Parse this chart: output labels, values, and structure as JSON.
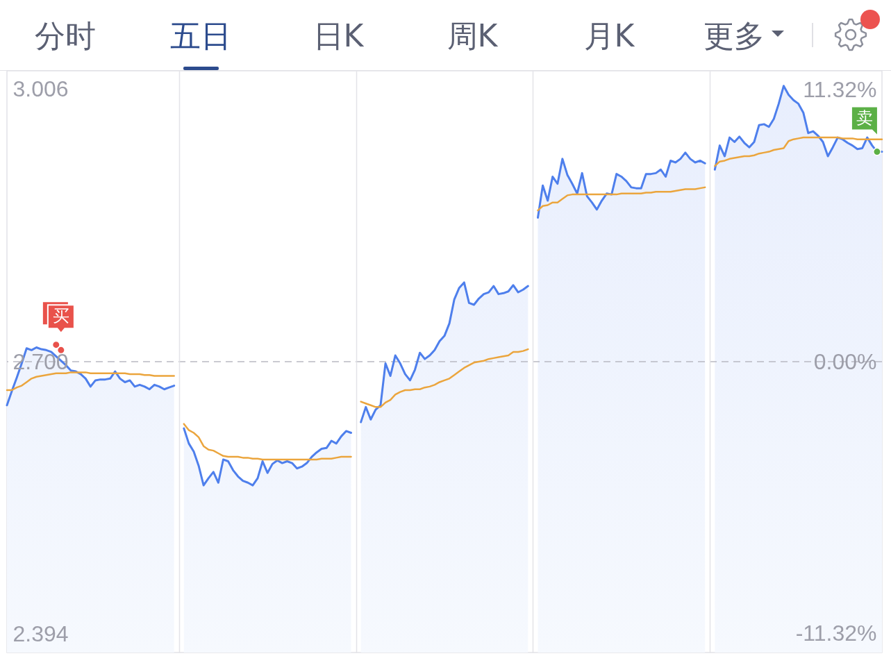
{
  "chart_data": {
    "type": "line",
    "annotations": [
      "分时",
      "五日",
      "日K",
      "周K",
      "月K",
      "更多"
    ],
    "categories": [
      null,
      null,
      null,
      null,
      null,
      null,
      null,
      null,
      null,
      null,
      null,
      null,
      null,
      null,
      null,
      null,
      null,
      null,
      null,
      null,
      null,
      null,
      null,
      null,
      null,
      null,
      null,
      null,
      null,
      null,
      null,
      null,
      null,
      null,
      null,
      null,
      null,
      null,
      null,
      null,
      null,
      null,
      null,
      null,
      null,
      null,
      null,
      null,
      null,
      null,
      null,
      null,
      null,
      null,
      null,
      null,
      null,
      null,
      null,
      null,
      null,
      null,
      null,
      null,
      null,
      null,
      null,
      null,
      null,
      null,
      null,
      null,
      null,
      null,
      null,
      null,
      null,
      null,
      null,
      null,
      null,
      null,
      null,
      null,
      null,
      null,
      null,
      null,
      null,
      null,
      null,
      null,
      null,
      null,
      null,
      null,
      null,
      null,
      null,
      null,
      null,
      null,
      null,
      null,
      null,
      null,
      null,
      null,
      null,
      null,
      null,
      null,
      null,
      null,
      null,
      null,
      null,
      null,
      null,
      null,
      null,
      null,
      null,
      null,
      null,
      null,
      null,
      null,
      null,
      null,
      null,
      null,
      null,
      null,
      null,
      null,
      null,
      null,
      null,
      null,
      null,
      null,
      null,
      null,
      null,
      null,
      null,
      null,
      null,
      null,
      null,
      null,
      null,
      null,
      null,
      null,
      null,
      null,
      null,
      null,
      null,
      null,
      null,
      null,
      null,
      null,
      null,
      null,
      null,
      null,
      null,
      null,
      null,
      null,
      null,
      null,
      null,
      null,
      null
    ],
    "series": [
      {
        "type": "area",
        "color": "#4e7fec",
        "values": [
          2.651,
          2.667,
          2.682,
          2.698,
          2.715,
          2.713,
          2.716,
          2.714,
          2.713,
          2.711,
          2.706,
          2.701,
          2.696,
          2.69,
          2.689,
          2.686,
          2.681,
          2.672,
          2.679,
          2.68,
          2.68,
          2.681,
          2.689,
          2.681,
          2.677,
          2.679,
          2.672,
          2.674,
          2.672,
          2.669,
          2.674,
          2.672,
          2.669,
          2.671,
          2.673,
          null,
          2.625,
          2.608,
          2.599,
          2.583,
          2.561,
          2.569,
          2.576,
          2.564,
          2.59,
          2.588,
          2.578,
          2.571,
          2.566,
          2.564,
          2.561,
          2.569,
          2.588,
          2.575,
          2.585,
          2.589,
          2.586,
          2.588,
          2.586,
          2.58,
          2.582,
          2.586,
          2.593,
          2.598,
          2.602,
          2.603,
          2.611,
          2.608,
          2.616,
          2.622,
          2.62,
          null,
          2.632,
          2.649,
          2.635,
          2.646,
          2.651,
          2.698,
          2.684,
          2.707,
          2.698,
          2.686,
          2.679,
          2.691,
          2.71,
          2.703,
          2.707,
          2.713,
          2.723,
          2.729,
          2.743,
          2.77,
          2.783,
          2.789,
          2.766,
          2.764,
          2.771,
          2.776,
          2.778,
          2.785,
          2.776,
          2.777,
          2.779,
          2.786,
          2.778,
          2.781,
          2.785,
          null,
          2.862,
          2.898,
          2.881,
          2.908,
          2.9,
          2.928,
          2.91,
          2.9,
          2.889,
          2.912,
          2.886,
          2.879,
          2.871,
          2.881,
          2.889,
          2.888,
          2.911,
          2.908,
          2.903,
          2.896,
          2.895,
          2.895,
          2.911,
          2.911,
          2.912,
          2.916,
          2.908,
          2.926,
          2.924,
          2.928,
          2.935,
          2.928,
          2.924,
          2.926,
          2.923,
          null,
          2.916,
          2.943,
          2.931,
          2.952,
          2.947,
          2.953,
          2.946,
          2.941,
          2.947,
          2.966,
          2.967,
          2.964,
          2.973,
          2.99,
          3.01,
          3.0,
          2.994,
          2.99,
          2.98,
          2.957,
          2.959,
          2.954,
          2.947,
          2.931,
          2.941,
          2.952,
          2.95,
          2.946,
          2.943,
          2.939,
          2.94,
          2.952,
          2.943,
          2.936,
          2.936
        ]
      },
      {
        "color": "#eba53d",
        "values": [
          2.668,
          2.668,
          2.671,
          2.673,
          2.677,
          2.681,
          2.683,
          2.684,
          2.685,
          2.686,
          2.687,
          2.687,
          2.687,
          2.688,
          2.688,
          2.688,
          2.688,
          2.687,
          2.687,
          2.687,
          2.687,
          2.687,
          2.687,
          2.687,
          2.687,
          2.686,
          2.686,
          2.686,
          2.685,
          2.685,
          2.684,
          2.684,
          2.684,
          2.684,
          2.684,
          null,
          2.63,
          2.623,
          2.62,
          2.615,
          2.605,
          2.601,
          2.6,
          2.597,
          2.594,
          2.593,
          2.593,
          2.593,
          2.592,
          2.592,
          2.591,
          2.591,
          2.59,
          2.59,
          2.59,
          2.59,
          2.59,
          2.59,
          2.59,
          2.59,
          2.59,
          2.59,
          2.59,
          2.59,
          2.591,
          2.591,
          2.591,
          2.592,
          2.593,
          2.593,
          2.593,
          null,
          2.655,
          2.653,
          2.651,
          2.649,
          2.649,
          2.654,
          2.657,
          2.663,
          2.666,
          2.668,
          2.668,
          2.669,
          2.669,
          2.671,
          2.672,
          2.674,
          2.677,
          2.679,
          2.681,
          2.685,
          2.689,
          2.693,
          2.696,
          2.699,
          2.7,
          2.701,
          2.703,
          2.704,
          2.705,
          2.706,
          2.707,
          2.711,
          2.711,
          2.712,
          2.714,
          null,
          2.87,
          2.875,
          2.876,
          2.879,
          2.879,
          2.883,
          2.887,
          2.888,
          2.888,
          2.888,
          2.888,
          2.888,
          2.888,
          2.888,
          2.888,
          2.888,
          2.888,
          2.889,
          2.889,
          2.889,
          2.889,
          2.889,
          2.89,
          2.89,
          2.891,
          2.891,
          2.891,
          2.891,
          2.892,
          2.893,
          2.894,
          2.894,
          2.894,
          2.895,
          2.896,
          null,
          2.92,
          2.925,
          2.926,
          2.928,
          2.929,
          2.93,
          2.931,
          2.931,
          2.932,
          2.934,
          2.935,
          2.936,
          2.938,
          2.939,
          2.94,
          2.948,
          2.95,
          2.951,
          2.952,
          2.952,
          2.952,
          2.952,
          2.952,
          2.952,
          2.952,
          2.952,
          2.951,
          2.951,
          2.951,
          2.95,
          2.95,
          2.95,
          2.95,
          2.95,
          2.95
        ]
      },
      {
        "type": "scatter",
        "color": "#e9524b",
        "values": [
          null,
          null,
          null,
          null,
          null,
          null,
          null,
          null,
          null,
          null,
          2.719,
          2.713,
          null,
          null,
          null,
          null,
          null,
          null,
          null,
          null,
          null,
          null,
          null,
          null,
          null,
          null,
          null,
          null,
          null,
          null,
          null,
          null,
          null,
          null,
          null,
          null,
          null,
          null,
          null,
          null,
          null,
          null,
          null,
          null,
          null,
          null,
          null,
          null,
          null,
          null,
          null,
          null,
          null,
          null,
          null,
          null,
          null,
          null,
          null,
          null,
          null,
          null,
          null,
          null,
          null,
          null,
          null,
          null,
          null,
          null,
          null,
          null,
          null,
          null,
          null,
          null,
          null,
          null,
          null,
          null,
          null,
          null,
          null,
          null,
          null,
          null,
          null,
          null,
          null,
          null,
          null,
          null,
          null,
          null,
          null,
          null,
          null,
          null,
          null,
          null,
          null,
          null,
          null,
          null,
          null,
          null,
          null,
          null,
          null,
          null,
          null,
          null,
          null,
          null,
          null,
          null,
          null,
          null,
          null,
          null,
          null,
          null,
          null,
          null,
          null,
          null,
          null,
          null,
          null,
          null,
          null,
          null,
          null,
          null,
          null,
          null,
          null,
          null,
          null,
          null,
          null,
          null,
          null,
          null,
          null,
          null,
          null,
          null,
          null,
          null,
          null,
          null,
          null,
          null,
          null,
          null,
          null,
          null,
          null,
          null,
          null,
          null,
          null,
          null,
          null,
          null,
          null,
          null,
          null,
          null,
          null,
          null,
          null,
          null,
          null,
          null,
          null,
          null,
          null
        ],
        "value_labels": [
          null,
          null,
          null,
          null,
          null,
          null,
          null,
          null,
          null,
          null,
          null,
          "买",
          null,
          null,
          null,
          null,
          null,
          null,
          null,
          null,
          null,
          null,
          null,
          null,
          null,
          null,
          null,
          null,
          null,
          null,
          null,
          null,
          null,
          null,
          null,
          null,
          null,
          null,
          null,
          null,
          null,
          null,
          null,
          null,
          null,
          null,
          null,
          null,
          null,
          null,
          null,
          null,
          null,
          null,
          null,
          null,
          null,
          null,
          null,
          null,
          null,
          null,
          null,
          null,
          null,
          null,
          null,
          null,
          null,
          null,
          null,
          null,
          null,
          null,
          null,
          null,
          null,
          null,
          null,
          null,
          null,
          null,
          null,
          null,
          null,
          null,
          null,
          null,
          null,
          null,
          null,
          null,
          null,
          null,
          null,
          null,
          null,
          null,
          null,
          null,
          null,
          null,
          null,
          null,
          null,
          null,
          null,
          null,
          null,
          null,
          null,
          null,
          null,
          null,
          null,
          null,
          null,
          null,
          null,
          null,
          null,
          null,
          null,
          null,
          null,
          null,
          null,
          null,
          null,
          null,
          null,
          null,
          null,
          null,
          null,
          null,
          null,
          null,
          null,
          null,
          null,
          null,
          null,
          null,
          null,
          null,
          null,
          null,
          null,
          null,
          null,
          null,
          null,
          null,
          null,
          null,
          null,
          null,
          null,
          null,
          null,
          null,
          null,
          null,
          null,
          null,
          null,
          null,
          null,
          null,
          null,
          null,
          null,
          null,
          null,
          null,
          null,
          null,
          null
        ]
      },
      {
        "type": "scatter",
        "color": "#5bb046",
        "values": [
          null,
          null,
          null,
          null,
          null,
          null,
          null,
          null,
          null,
          null,
          null,
          null,
          null,
          null,
          null,
          null,
          null,
          null,
          null,
          null,
          null,
          null,
          null,
          null,
          null,
          null,
          null,
          null,
          null,
          null,
          null,
          null,
          null,
          null,
          null,
          null,
          null,
          null,
          null,
          null,
          null,
          null,
          null,
          null,
          null,
          null,
          null,
          null,
          null,
          null,
          null,
          null,
          null,
          null,
          null,
          null,
          null,
          null,
          null,
          null,
          null,
          null,
          null,
          null,
          null,
          null,
          null,
          null,
          null,
          null,
          null,
          null,
          null,
          null,
          null,
          null,
          null,
          null,
          null,
          null,
          null,
          null,
          null,
          null,
          null,
          null,
          null,
          null,
          null,
          null,
          null,
          null,
          null,
          null,
          null,
          null,
          null,
          null,
          null,
          null,
          null,
          null,
          null,
          null,
          null,
          null,
          null,
          null,
          null,
          null,
          null,
          null,
          null,
          null,
          null,
          null,
          null,
          null,
          null,
          null,
          null,
          null,
          null,
          null,
          null,
          null,
          null,
          null,
          null,
          null,
          null,
          null,
          null,
          null,
          null,
          null,
          null,
          null,
          null,
          null,
          null,
          null,
          null,
          null,
          null,
          null,
          null,
          null,
          null,
          null,
          null,
          null,
          null,
          null,
          null,
          null,
          null,
          null,
          null,
          null,
          null,
          null,
          null,
          null,
          null,
          null,
          null,
          null,
          null,
          null,
          null,
          null,
          null,
          null,
          null,
          null,
          null,
          2.936,
          null
        ],
        "value_labels": [
          null,
          null,
          null,
          null,
          null,
          null,
          null,
          null,
          null,
          null,
          null,
          null,
          null,
          null,
          null,
          null,
          null,
          null,
          null,
          null,
          null,
          null,
          null,
          null,
          null,
          null,
          null,
          null,
          null,
          null,
          null,
          null,
          null,
          null,
          null,
          null,
          null,
          null,
          null,
          null,
          null,
          null,
          null,
          null,
          null,
          null,
          null,
          null,
          null,
          null,
          null,
          null,
          null,
          null,
          null,
          null,
          null,
          null,
          null,
          null,
          null,
          null,
          null,
          null,
          null,
          null,
          null,
          null,
          null,
          null,
          null,
          null,
          null,
          null,
          null,
          null,
          null,
          null,
          null,
          null,
          null,
          null,
          null,
          null,
          null,
          null,
          null,
          null,
          null,
          null,
          null,
          null,
          null,
          null,
          null,
          null,
          null,
          null,
          null,
          null,
          null,
          null,
          null,
          null,
          null,
          null,
          null,
          null,
          null,
          null,
          null,
          null,
          null,
          null,
          null,
          null,
          null,
          null,
          null,
          null,
          null,
          null,
          null,
          null,
          null,
          null,
          null,
          null,
          null,
          null,
          null,
          null,
          null,
          null,
          null,
          null,
          null,
          null,
          null,
          null,
          null,
          null,
          null,
          null,
          null,
          null,
          null,
          null,
          null,
          null,
          null,
          null,
          null,
          null,
          null,
          null,
          null,
          null,
          null,
          null,
          null,
          null,
          null,
          null,
          null,
          null,
          null,
          null,
          null,
          null,
          null,
          null,
          null,
          null,
          null,
          null,
          null,
          "卖",
          null
        ]
      }
    ],
    "ylim": [
      2.373,
      3.027
    ],
    "yticks": [
      2.394,
      {
        "value": 2.7,
        "label": "2.700"
      },
      3.006
    ],
    "y2lim": [
      -12.1,
      12.1
    ],
    "y2ticks": [
      {
        "value": -11.32,
        "label": "-11.32%"
      },
      {
        "value": 0,
        "label": "0.00%"
      },
      {
        "value": 11.32,
        "label": "11.32%"
      }
    ],
    "grid": "x",
    "ref_lines": [
      {
        "axis": "y",
        "value": 2.7,
        "line_style": "dashed",
        "color": "#b9b9c2"
      }
    ]
  }
}
